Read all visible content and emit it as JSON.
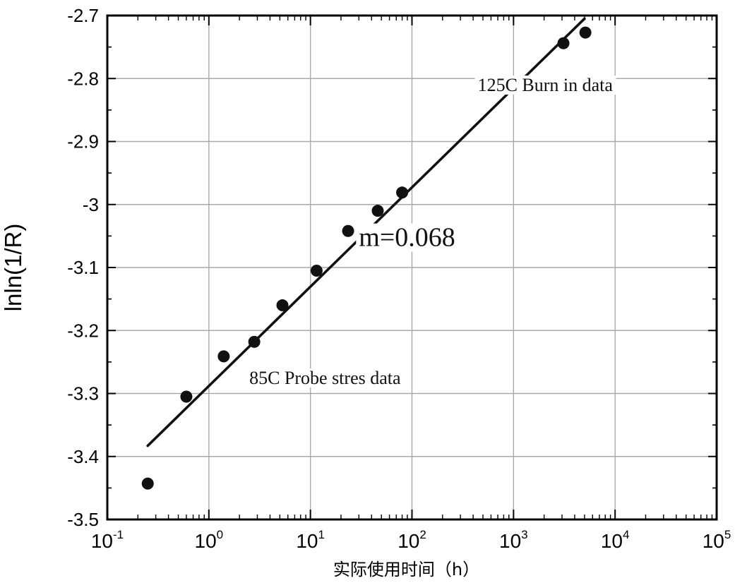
{
  "chart_data": {
    "type": "scatter",
    "x_scale": "log",
    "xlabel": "实际使用时间（h）",
    "ylabel": "lnln(1/R)",
    "xlim": [
      0.1,
      100000
    ],
    "ylim": [
      -3.5,
      -2.7
    ],
    "grid": true,
    "x_ticks": [
      {
        "base": "10",
        "exp": "-1"
      },
      {
        "base": "10",
        "exp": "0"
      },
      {
        "base": "10",
        "exp": "1"
      },
      {
        "base": "10",
        "exp": "2"
      },
      {
        "base": "10",
        "exp": "3"
      },
      {
        "base": "10",
        "exp": "4"
      },
      {
        "base": "10",
        "exp": "5"
      }
    ],
    "y_ticks": [
      "-2.7",
      "-2.8",
      "-2.9",
      "-3",
      "-3.1",
      "-3.2",
      "-3.3",
      "-3.4",
      "-3.5"
    ],
    "series": [
      {
        "points": [
          {
            "x": 0.25,
            "y": -3.443
          },
          {
            "x": 0.6,
            "y": -3.305
          },
          {
            "x": 1.4,
            "y": -3.241
          },
          {
            "x": 2.8,
            "y": -3.218
          },
          {
            "x": 5.3,
            "y": -3.16
          },
          {
            "x": 11.5,
            "y": -3.105
          },
          {
            "x": 23.5,
            "y": -3.042
          },
          {
            "x": 46,
            "y": -3.01
          },
          {
            "x": 80,
            "y": -2.981
          },
          {
            "x": 3100,
            "y": -2.744
          },
          {
            "x": 5100,
            "y": -2.727
          }
        ]
      }
    ],
    "fit_line": {
      "x": [
        0.25,
        5000
      ],
      "y": [
        -3.383,
        -2.705
      ]
    },
    "annotations": [
      {
        "text": "125C Burn in data",
        "x": 9500,
        "y": -2.82,
        "anchor": "end",
        "size": 26
      },
      {
        "text": "m=0.068",
        "x": 30,
        "y": -3.066,
        "anchor": "start",
        "size": 38
      },
      {
        "text": "85C Probe stres data",
        "x": 2.5,
        "y": -3.285,
        "anchor": "start",
        "size": 26
      }
    ]
  }
}
